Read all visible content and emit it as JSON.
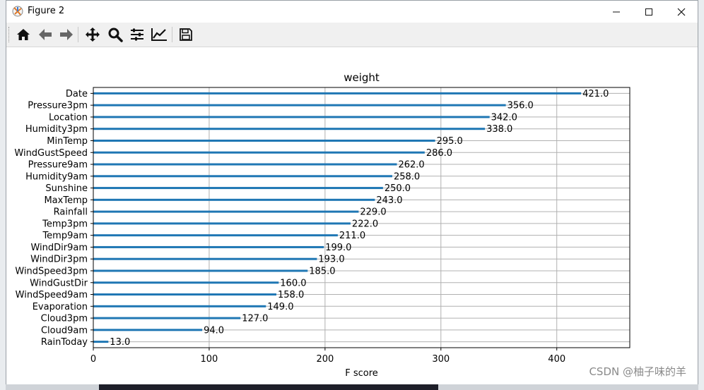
{
  "window": {
    "title": "Figure 2"
  },
  "toolbar": {
    "buttons": [
      {
        "name": "home-icon"
      },
      {
        "name": "back-icon"
      },
      {
        "name": "forward-icon"
      },
      {
        "name": "pan-icon"
      },
      {
        "name": "zoom-icon"
      },
      {
        "name": "configure-subplots-icon"
      },
      {
        "name": "edit-axis-icon"
      },
      {
        "name": "save-icon"
      }
    ]
  },
  "watermark": "CSDN @柚子味的羊",
  "chart_data": {
    "type": "bar",
    "orientation": "horizontal",
    "title": "weight",
    "xlabel": "F score",
    "ylabel": "",
    "xlim": [
      0,
      463
    ],
    "xticks": [
      0,
      100,
      200,
      300,
      400
    ],
    "grid": true,
    "categories": [
      "Date",
      "Pressure3pm",
      "Location",
      "Humidity3pm",
      "MinTemp",
      "WindGustSpeed",
      "Pressure9am",
      "Humidity9am",
      "Sunshine",
      "MaxTemp",
      "Rainfall",
      "Temp3pm",
      "Temp9am",
      "WindDir9am",
      "WindDir3pm",
      "WindSpeed3pm",
      "WindGustDir",
      "WindSpeed9am",
      "Evaporation",
      "Cloud3pm",
      "Cloud9am",
      "RainToday"
    ],
    "values": [
      421.0,
      356.0,
      342.0,
      338.0,
      295.0,
      286.0,
      262.0,
      258.0,
      250.0,
      243.0,
      229.0,
      222.0,
      211.0,
      199.0,
      193.0,
      185.0,
      160.0,
      158.0,
      149.0,
      127.0,
      94.0,
      13.0
    ],
    "value_labels": [
      "421.0",
      "356.0",
      "342.0",
      "338.0",
      "295.0",
      "286.0",
      "262.0",
      "258.0",
      "250.0",
      "243.0",
      "229.0",
      "222.0",
      "211.0",
      "199.0",
      "193.0",
      "185.0",
      "160.0",
      "158.0",
      "149.0",
      "127.0",
      "94.0",
      "13.0"
    ],
    "bar_color": "#1f77b4"
  }
}
